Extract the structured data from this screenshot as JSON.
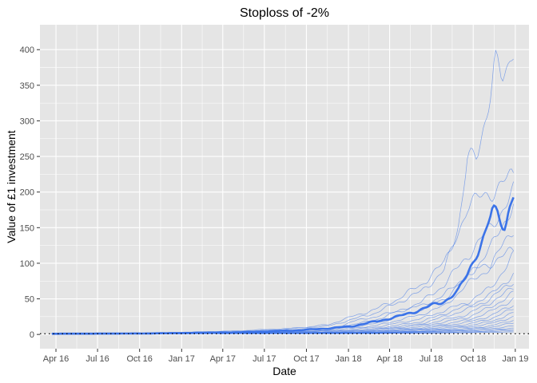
{
  "chart_data": {
    "type": "line",
    "title": "Stoploss of -2%",
    "xlabel": "Date",
    "ylabel": "Value of £1 investment",
    "x_range": [
      "2016-02-26",
      "2019-01-31"
    ],
    "ylim": [
      -20,
      435
    ],
    "x_ticks": [
      {
        "date": "2016-04-01",
        "label": "Apr 16"
      },
      {
        "date": "2016-07-01",
        "label": "Jul 16"
      },
      {
        "date": "2016-10-01",
        "label": "Oct 16"
      },
      {
        "date": "2017-01-01",
        "label": "Jan 17"
      },
      {
        "date": "2017-04-01",
        "label": "Apr 17"
      },
      {
        "date": "2017-07-01",
        "label": "Jul 17"
      },
      {
        "date": "2017-10-01",
        "label": "Oct 17"
      },
      {
        "date": "2018-01-01",
        "label": "Jan 18"
      },
      {
        "date": "2018-04-01",
        "label": "Apr 18"
      },
      {
        "date": "2018-07-01",
        "label": "Jul 18"
      },
      {
        "date": "2018-10-01",
        "label": "Oct 18"
      },
      {
        "date": "2019-01-01",
        "label": "Jan 19"
      }
    ],
    "y_ticks": [
      0,
      50,
      100,
      150,
      200,
      250,
      300,
      350,
      400
    ],
    "reference_line": {
      "y": 1,
      "style": "dotted",
      "color": "#000000"
    },
    "grid": true,
    "legend": "none",
    "colors": {
      "panel": "#e5e5e5",
      "grid": "#ffffff",
      "line": "#3b73e8",
      "text": "#4d4d4d"
    },
    "x_start": "2016-03-23",
    "x_end": "2018-12-28",
    "series": [
      {
        "emphasis": true,
        "values": [
          [
            0,
            1
          ],
          [
            0.1,
            1.1
          ],
          [
            0.2,
            1.4
          ],
          [
            0.3,
            2.0
          ],
          [
            0.4,
            3.0
          ],
          [
            0.52,
            5.5
          ],
          [
            0.6,
            8.5
          ],
          [
            0.65,
            11.5
          ],
          [
            0.7,
            18
          ],
          [
            0.75,
            25
          ],
          [
            0.8,
            35
          ],
          [
            0.85,
            47
          ],
          [
            0.88,
            60
          ],
          [
            0.9,
            85
          ],
          [
            0.92,
            115
          ],
          [
            0.94,
            140
          ],
          [
            0.955,
            175
          ],
          [
            0.965,
            170
          ],
          [
            0.975,
            160
          ],
          [
            0.982,
            155
          ],
          [
            0.99,
            175
          ],
          [
            1,
            195
          ]
        ]
      },
      {
        "values": [
          [
            0,
            1
          ],
          [
            0.1,
            1.3
          ],
          [
            0.2,
            2.0
          ],
          [
            0.3,
            3.5
          ],
          [
            0.4,
            5
          ],
          [
            0.5,
            8
          ],
          [
            0.55,
            10
          ],
          [
            0.6,
            14
          ],
          [
            0.65,
            25
          ],
          [
            0.7,
            35
          ],
          [
            0.75,
            50
          ],
          [
            0.8,
            70
          ],
          [
            0.85,
            100
          ],
          [
            0.88,
            150
          ],
          [
            0.9,
            240
          ],
          [
            0.92,
            250
          ],
          [
            0.94,
            310
          ],
          [
            0.96,
            380
          ],
          [
            0.975,
            350
          ],
          [
            0.99,
            375
          ],
          [
            1,
            415
          ]
        ]
      },
      {
        "values": [
          [
            0,
            1
          ],
          [
            0.2,
            1.8
          ],
          [
            0.4,
            4
          ],
          [
            0.5,
            7
          ],
          [
            0.6,
            12
          ],
          [
            0.7,
            30
          ],
          [
            0.8,
            60
          ],
          [
            0.85,
            90
          ],
          [
            0.9,
            180
          ],
          [
            0.95,
            200
          ],
          [
            1,
            222
          ]
        ]
      },
      {
        "values": [
          [
            0,
            1
          ],
          [
            0.2,
            1.5
          ],
          [
            0.4,
            3
          ],
          [
            0.6,
            8
          ],
          [
            0.7,
            20
          ],
          [
            0.8,
            45
          ],
          [
            0.85,
            70
          ],
          [
            0.9,
            110
          ],
          [
            0.95,
            150
          ],
          [
            1,
            200
          ]
        ]
      },
      {
        "values": [
          [
            0,
            1
          ],
          [
            0.2,
            1.4
          ],
          [
            0.4,
            2.5
          ],
          [
            0.6,
            6
          ],
          [
            0.7,
            15
          ],
          [
            0.8,
            35
          ],
          [
            0.85,
            50
          ],
          [
            0.9,
            80
          ],
          [
            0.95,
            120
          ],
          [
            1,
            185
          ]
        ]
      },
      {
        "values": [
          [
            0,
            1
          ],
          [
            0.2,
            1.3
          ],
          [
            0.4,
            2.2
          ],
          [
            0.6,
            5
          ],
          [
            0.7,
            12
          ],
          [
            0.8,
            28
          ],
          [
            0.85,
            40
          ],
          [
            0.9,
            70
          ],
          [
            0.95,
            95
          ],
          [
            1,
            150
          ]
        ]
      },
      {
        "values": [
          [
            0,
            1
          ],
          [
            0.2,
            1.3
          ],
          [
            0.4,
            2
          ],
          [
            0.6,
            5
          ],
          [
            0.65,
            18
          ],
          [
            0.7,
            25
          ],
          [
            0.8,
            40
          ],
          [
            0.85,
            55
          ],
          [
            0.9,
            85
          ],
          [
            0.95,
            100
          ],
          [
            1,
            118
          ]
        ]
      },
      {
        "values": [
          [
            0,
            1
          ],
          [
            0.2,
            1.2
          ],
          [
            0.4,
            2
          ],
          [
            0.6,
            4
          ],
          [
            0.7,
            10
          ],
          [
            0.8,
            22
          ],
          [
            0.9,
            45
          ],
          [
            0.95,
            65
          ],
          [
            1,
            110
          ]
        ]
      },
      {
        "values": [
          [
            0,
            1
          ],
          [
            0.2,
            1.2
          ],
          [
            0.4,
            1.8
          ],
          [
            0.6,
            3.5
          ],
          [
            0.7,
            8
          ],
          [
            0.8,
            18
          ],
          [
            0.9,
            40
          ],
          [
            0.95,
            55
          ],
          [
            1,
            85
          ]
        ]
      },
      {
        "values": [
          [
            0,
            1
          ],
          [
            0.2,
            1.2
          ],
          [
            0.4,
            1.7
          ],
          [
            0.6,
            3
          ],
          [
            0.7,
            7
          ],
          [
            0.8,
            15
          ],
          [
            0.9,
            35
          ],
          [
            0.95,
            50
          ],
          [
            1,
            75
          ]
        ]
      },
      {
        "values": [
          [
            0,
            1
          ],
          [
            0.2,
            1.1
          ],
          [
            0.4,
            1.6
          ],
          [
            0.6,
            3
          ],
          [
            0.7,
            6
          ],
          [
            0.8,
            13
          ],
          [
            0.9,
            28
          ],
          [
            0.95,
            45
          ],
          [
            1,
            65
          ]
        ]
      },
      {
        "values": [
          [
            0,
            1
          ],
          [
            0.2,
            1.1
          ],
          [
            0.4,
            1.5
          ],
          [
            0.6,
            2.5
          ],
          [
            0.7,
            5
          ],
          [
            0.8,
            11
          ],
          [
            0.9,
            24
          ],
          [
            0.95,
            38
          ],
          [
            1,
            58
          ]
        ]
      },
      {
        "values": [
          [
            0,
            1
          ],
          [
            0.2,
            1.1
          ],
          [
            0.4,
            1.4
          ],
          [
            0.6,
            2.3
          ],
          [
            0.7,
            4.5
          ],
          [
            0.8,
            9
          ],
          [
            0.9,
            20
          ],
          [
            0.95,
            32
          ],
          [
            1,
            50
          ]
        ]
      },
      {
        "values": [
          [
            0,
            1
          ],
          [
            0.2,
            1.1
          ],
          [
            0.4,
            1.4
          ],
          [
            0.6,
            2.1
          ],
          [
            0.7,
            4
          ],
          [
            0.8,
            8
          ],
          [
            0.9,
            17
          ],
          [
            0.95,
            26
          ],
          [
            1,
            42
          ]
        ]
      },
      {
        "values": [
          [
            0,
            1
          ],
          [
            0.2,
            1.1
          ],
          [
            0.4,
            1.3
          ],
          [
            0.6,
            2
          ],
          [
            0.7,
            3.5
          ],
          [
            0.8,
            7
          ],
          [
            0.9,
            14
          ],
          [
            0.95,
            22
          ],
          [
            1,
            36
          ]
        ]
      },
      {
        "values": [
          [
            0,
            1
          ],
          [
            0.2,
            1.0
          ],
          [
            0.4,
            1.3
          ],
          [
            0.6,
            1.8
          ],
          [
            0.7,
            3
          ],
          [
            0.8,
            6
          ],
          [
            0.9,
            12
          ],
          [
            0.95,
            18
          ],
          [
            1,
            30
          ]
        ]
      },
      {
        "values": [
          [
            0,
            1
          ],
          [
            0.2,
            1.0
          ],
          [
            0.4,
            1.2
          ],
          [
            0.6,
            1.7
          ],
          [
            0.7,
            2.8
          ],
          [
            0.8,
            5
          ],
          [
            0.9,
            10
          ],
          [
            0.95,
            15
          ],
          [
            1,
            25
          ]
        ]
      },
      {
        "values": [
          [
            0,
            1
          ],
          [
            0.2,
            1.0
          ],
          [
            0.4,
            1.2
          ],
          [
            0.6,
            1.6
          ],
          [
            0.7,
            2.5
          ],
          [
            0.8,
            4.5
          ],
          [
            0.9,
            8
          ],
          [
            0.95,
            12
          ],
          [
            1,
            20
          ]
        ]
      },
      {
        "values": [
          [
            0,
            1
          ],
          [
            0.2,
            1.0
          ],
          [
            0.4,
            1.1
          ],
          [
            0.6,
            1.5
          ],
          [
            0.7,
            2.2
          ],
          [
            0.8,
            4
          ],
          [
            0.9,
            7
          ],
          [
            0.95,
            10
          ],
          [
            1,
            16
          ]
        ]
      },
      {
        "values": [
          [
            0,
            1
          ],
          [
            0.2,
            1.0
          ],
          [
            0.4,
            1.1
          ],
          [
            0.6,
            1.4
          ],
          [
            0.7,
            2
          ],
          [
            0.8,
            3.5
          ],
          [
            0.9,
            6
          ],
          [
            0.95,
            8
          ],
          [
            1,
            12
          ]
        ]
      },
      {
        "values": [
          [
            0,
            1
          ],
          [
            0.2,
            1.0
          ],
          [
            0.4,
            1.1
          ],
          [
            0.6,
            1.3
          ],
          [
            0.7,
            1.8
          ],
          [
            0.8,
            3
          ],
          [
            0.9,
            5
          ],
          [
            0.95,
            6.5
          ],
          [
            1,
            9
          ]
        ]
      },
      {
        "values": [
          [
            0,
            1
          ],
          [
            0.2,
            1.0
          ],
          [
            0.4,
            1.05
          ],
          [
            0.6,
            1.2
          ],
          [
            0.7,
            1.6
          ],
          [
            0.8,
            2.5
          ],
          [
            0.9,
            4
          ],
          [
            0.95,
            5
          ],
          [
            1,
            7
          ]
        ]
      },
      {
        "values": [
          [
            0,
            1
          ],
          [
            0.2,
            1.0
          ],
          [
            0.4,
            1.05
          ],
          [
            0.6,
            1.15
          ],
          [
            0.7,
            1.4
          ],
          [
            0.8,
            2
          ],
          [
            0.9,
            3
          ],
          [
            0.95,
            4
          ],
          [
            1,
            5
          ]
        ]
      },
      {
        "values": [
          [
            0,
            1
          ],
          [
            0.2,
            1.0
          ],
          [
            0.4,
            1.0
          ],
          [
            0.6,
            1.1
          ],
          [
            0.7,
            1.3
          ],
          [
            0.8,
            1.7
          ],
          [
            0.9,
            2.5
          ],
          [
            0.95,
            3
          ],
          [
            1,
            3.5
          ]
        ]
      }
    ]
  }
}
